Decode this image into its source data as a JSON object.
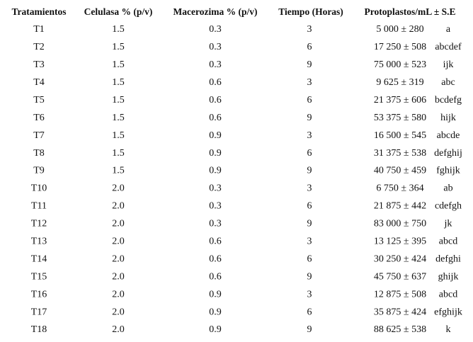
{
  "table": {
    "header": [
      "Tratamientos",
      "Celulasa % (p/v)",
      "Macerozima % (p/v)",
      "Tiempo (Horas)",
      "Protoplastos/mL ± S.E"
    ],
    "rows": [
      [
        "T1",
        "1.5",
        "0.3",
        "3",
        "5 000 ± 280",
        "a"
      ],
      [
        "T2",
        "1.5",
        "0.3",
        "6",
        "17 250 ± 508",
        "abcdef"
      ],
      [
        "T3",
        "1.5",
        "0.3",
        "9",
        "75 000 ± 523",
        "ijk"
      ],
      [
        "T4",
        "1.5",
        "0.6",
        "3",
        "9 625 ± 319",
        "abc"
      ],
      [
        "T5",
        "1.5",
        "0.6",
        "6",
        "21 375 ± 606",
        "bcdefg"
      ],
      [
        "T6",
        "1.5",
        "0.6",
        "9",
        "53 375 ± 580",
        "hijk"
      ],
      [
        "T7",
        "1.5",
        "0.9",
        "3",
        "16 500 ± 545",
        "abcde"
      ],
      [
        "T8",
        "1.5",
        "0.9",
        "6",
        "31 375 ± 538",
        "defghij"
      ],
      [
        "T9",
        "1.5",
        "0.9",
        "9",
        "40 750 ± 459",
        "fghijk"
      ],
      [
        "T10",
        "2.0",
        "0.3",
        "3",
        "6 750 ± 364",
        "ab"
      ],
      [
        "T11",
        "2.0",
        "0.3",
        "6",
        "21 875 ± 442",
        "cdefgh"
      ],
      [
        "T12",
        "2.0",
        "0.3",
        "9",
        "83 000 ± 750",
        "jk"
      ],
      [
        "T13",
        "2.0",
        "0.6",
        "3",
        "13 125 ± 395",
        "abcd"
      ],
      [
        "T14",
        "2.0",
        "0.6",
        "6",
        "30 250 ± 424",
        "defghi"
      ],
      [
        "T15",
        "2.0",
        "0.6",
        "9",
        "45 750 ± 637",
        "ghijk"
      ],
      [
        "T16",
        "2.0",
        "0.9",
        "3",
        "12 875 ± 508",
        "abcd"
      ],
      [
        "T17",
        "2.0",
        "0.9",
        "6",
        "35 875 ± 424",
        "efghijk"
      ],
      [
        "T18",
        "2.0",
        "0.9",
        "9",
        "88 625 ± 538",
        "k"
      ]
    ]
  }
}
